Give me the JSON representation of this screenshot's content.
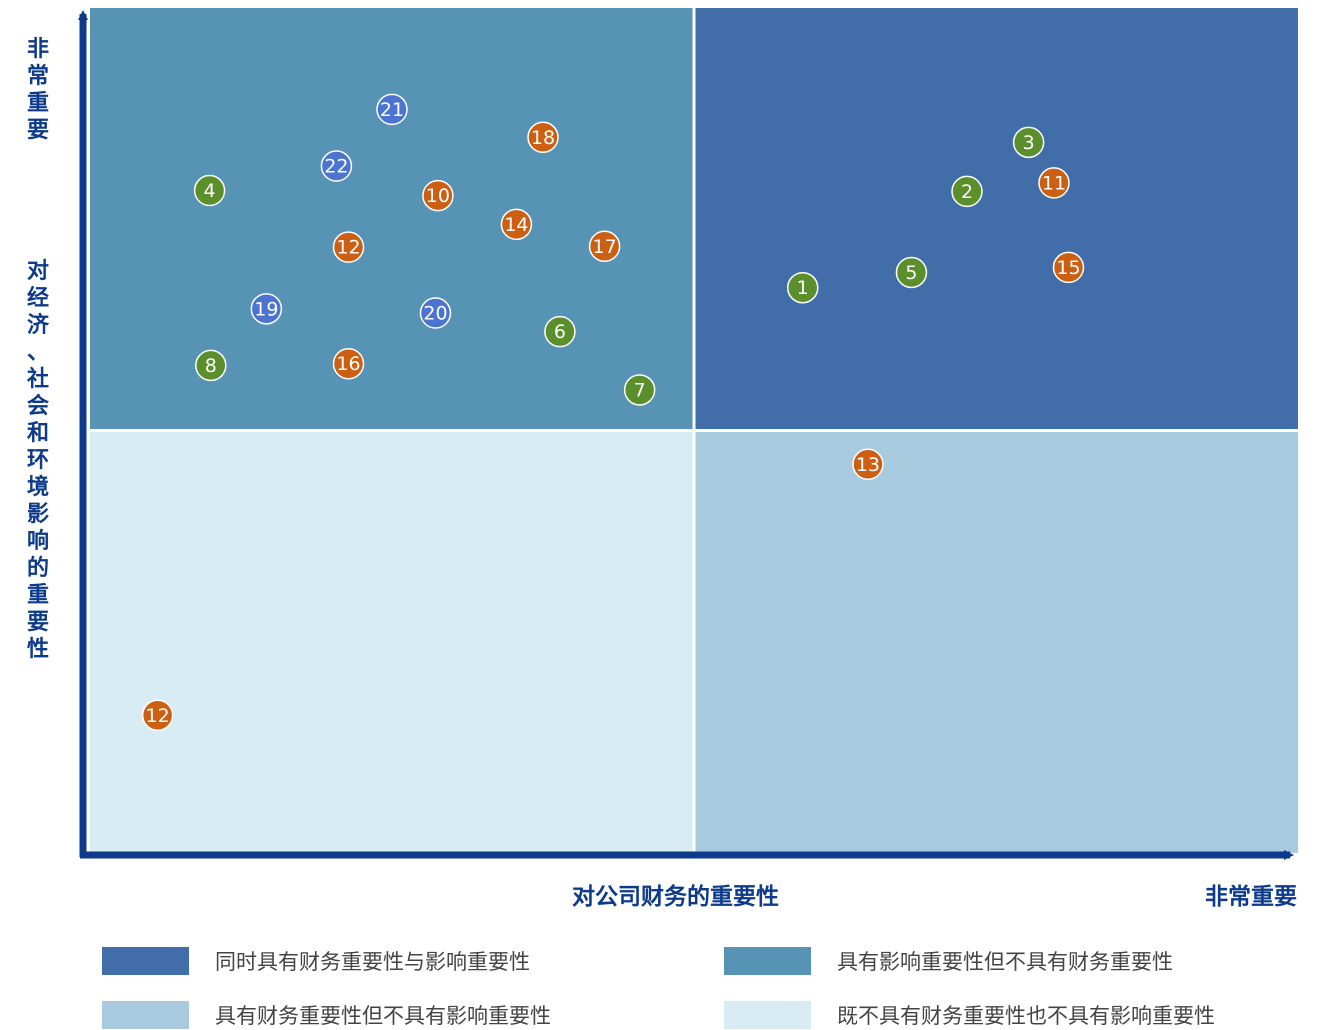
{
  "chart_data": {
    "type": "scatter",
    "title": "",
    "xlabel": "对公司财务的重要性",
    "xlabel_end": "非常重要",
    "ylabel_top": "非常重要",
    "ylabel": "对经济、社会和环境影响的重要性",
    "xlim": [
      0,
      100
    ],
    "ylim": [
      0,
      100
    ],
    "grid": false,
    "quadrants": [
      {
        "id": "both",
        "label": "同时具有财务重要性与影响重要性",
        "color": "#416ea9"
      },
      {
        "id": "impact-only",
        "label": "具有影响重要性但不具有财务重要性",
        "color": "#5793b5"
      },
      {
        "id": "financial-only",
        "label": "具有财务重要性但不具有影响重要性",
        "color": "#a7cade"
      },
      {
        "id": "neither",
        "label": "既不具有财务重要性也不具有影响重要性",
        "color": "#d8edf3"
      }
    ],
    "category_colors": {
      "green": "#5a8f2c",
      "orange": "#cc5f12",
      "blue": "#4a74cf"
    },
    "points": [
      {
        "label": "1",
        "x": 59.0,
        "y": 66.9,
        "category": "green"
      },
      {
        "label": "2",
        "x": 72.6,
        "y": 78.3,
        "category": "green"
      },
      {
        "label": "3",
        "x": 77.7,
        "y": 84.1,
        "category": "green"
      },
      {
        "label": "4",
        "x": 9.9,
        "y": 78.4,
        "category": "green"
      },
      {
        "label": "5",
        "x": 68.0,
        "y": 68.7,
        "category": "green"
      },
      {
        "label": "6",
        "x": 38.9,
        "y": 61.7,
        "category": "green"
      },
      {
        "label": "7",
        "x": 45.5,
        "y": 54.8,
        "category": "green"
      },
      {
        "label": "8",
        "x": 10.0,
        "y": 57.7,
        "category": "green"
      },
      {
        "label": "10",
        "x": 28.8,
        "y": 77.8,
        "category": "orange"
      },
      {
        "label": "11",
        "x": 79.8,
        "y": 79.3,
        "category": "orange"
      },
      {
        "label": "12",
        "x": 21.4,
        "y": 71.7,
        "category": "orange"
      },
      {
        "label": "12",
        "x": 5.6,
        "y": 16.3,
        "category": "orange"
      },
      {
        "label": "13",
        "x": 64.4,
        "y": 46.0,
        "category": "orange"
      },
      {
        "label": "14",
        "x": 35.3,
        "y": 74.4,
        "category": "orange"
      },
      {
        "label": "15",
        "x": 81.0,
        "y": 69.3,
        "category": "orange"
      },
      {
        "label": "16",
        "x": 21.4,
        "y": 57.9,
        "category": "orange"
      },
      {
        "label": "17",
        "x": 42.6,
        "y": 71.8,
        "category": "orange"
      },
      {
        "label": "18",
        "x": 37.5,
        "y": 84.7,
        "category": "orange"
      },
      {
        "label": "19",
        "x": 14.6,
        "y": 64.4,
        "category": "blue"
      },
      {
        "label": "20",
        "x": 28.6,
        "y": 63.9,
        "category": "blue"
      },
      {
        "label": "21",
        "x": 25.0,
        "y": 88.0,
        "category": "blue"
      },
      {
        "label": "22",
        "x": 20.4,
        "y": 81.3,
        "category": "blue"
      }
    ]
  }
}
